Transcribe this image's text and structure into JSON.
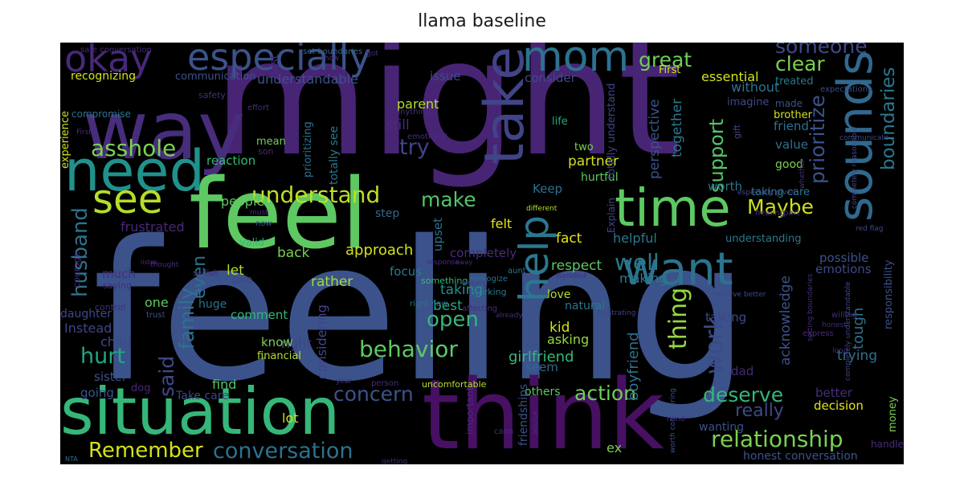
{
  "title": "llama baseline",
  "words": [
    {
      "text": "might",
      "color": "#482475"
    },
    {
      "text": "feeling",
      "color": "#3b528b"
    },
    {
      "text": "way",
      "color": "#472d7b"
    },
    {
      "text": "feel",
      "color": "#5ec962"
    },
    {
      "text": "think",
      "color": "#471063"
    },
    {
      "text": "situation",
      "color": "#35b779"
    },
    {
      "text": "need",
      "color": "#21918c"
    },
    {
      "text": "take",
      "color": "#414487"
    },
    {
      "text": "time",
      "color": "#5ec962"
    },
    {
      "text": "want",
      "color": "#2c728e"
    },
    {
      "text": "sounds",
      "color": "#31688e"
    },
    {
      "text": "help",
      "color": "#2a788e"
    },
    {
      "text": "mom",
      "color": "#2c728e"
    },
    {
      "text": "especially",
      "color": "#3b528b"
    },
    {
      "text": "okay",
      "color": "#482878"
    },
    {
      "text": "see",
      "color": "#b5de2b"
    },
    {
      "text": "asshole",
      "color": "#7ad151"
    },
    {
      "text": "understand",
      "color": "#bddf26"
    },
    {
      "text": "behavior",
      "color": "#5ec962"
    },
    {
      "text": "relationship",
      "color": "#7ad151"
    },
    {
      "text": "conversation",
      "color": "#2c728e"
    },
    {
      "text": "Remember",
      "color": "#d2e21b"
    },
    {
      "text": "concern",
      "color": "#3b528b"
    },
    {
      "text": "deserve",
      "color": "#35b779"
    },
    {
      "text": "action",
      "color": "#6ece58"
    },
    {
      "text": "make",
      "color": "#54c568"
    },
    {
      "text": "open",
      "color": "#35b779"
    },
    {
      "text": "try",
      "color": "#414487"
    },
    {
      "text": "hurt",
      "color": "#21a685"
    },
    {
      "text": "Maybe",
      "color": "#cde11d"
    },
    {
      "text": "well",
      "color": "#2a788e"
    },
    {
      "text": "thing",
      "color": "#95d840"
    },
    {
      "text": "work",
      "color": "#3e4989"
    },
    {
      "text": "great",
      "color": "#6ece58"
    },
    {
      "text": "clear",
      "color": "#7ad151"
    },
    {
      "text": "someone",
      "color": "#3e4989"
    },
    {
      "text": "support",
      "color": "#54c568"
    },
    {
      "text": "prioritize",
      "color": "#3b528b"
    },
    {
      "text": "boundaries",
      "color": "#2a788e"
    },
    {
      "text": "really",
      "color": "#3e4989"
    },
    {
      "text": "family",
      "color": "#2c728e"
    },
    {
      "text": "husband",
      "color": "#2c728e"
    },
    {
      "text": "said",
      "color": "#3e4989"
    },
    {
      "text": "even",
      "color": "#2c728e"
    },
    {
      "text": "understandable",
      "color": "#3b528b"
    },
    {
      "text": "essential",
      "color": "#d2e21b"
    },
    {
      "text": "issue",
      "color": "#3e4989"
    },
    {
      "text": "consider",
      "color": "#3e4989"
    },
    {
      "text": "recognizing",
      "color": "#d2e21b"
    },
    {
      "text": "people",
      "color": "#5ec962"
    },
    {
      "text": "frustrated",
      "color": "#482878"
    },
    {
      "text": "approach",
      "color": "#d2e21b"
    },
    {
      "text": "back",
      "color": "#7ad151"
    },
    {
      "text": "rather",
      "color": "#a0da39"
    },
    {
      "text": "let",
      "color": "#b5de2b"
    },
    {
      "text": "taking",
      "color": "#21918c"
    },
    {
      "text": "best",
      "color": "#22a884"
    },
    {
      "text": "kid",
      "color": "#d2e21b"
    },
    {
      "text": "girlfriend",
      "color": "#35b779"
    },
    {
      "text": "boyfriend",
      "color": "#2c728e"
    },
    {
      "text": "respect",
      "color": "#5ec962"
    },
    {
      "text": "fact",
      "color": "#e5e419"
    },
    {
      "text": "partner",
      "color": "#d2e21b"
    },
    {
      "text": "helpful",
      "color": "#2a788e"
    },
    {
      "text": "making",
      "color": "#2a788e"
    },
    {
      "text": "child",
      "color": "#3e4989"
    },
    {
      "text": "Instead",
      "color": "#414487"
    },
    {
      "text": "one",
      "color": "#5ec962"
    },
    {
      "text": "sister",
      "color": "#3b528b"
    },
    {
      "text": "going",
      "color": "#3b528b"
    },
    {
      "text": "Take care",
      "color": "#414487"
    },
    {
      "text": "find",
      "color": "#54c568"
    },
    {
      "text": "lot",
      "color": "#d2e21b"
    },
    {
      "text": "others",
      "color": "#5ec962"
    },
    {
      "text": "ex",
      "color": "#7ad151"
    },
    {
      "text": "honest conversation",
      "color": "#3b528b"
    },
    {
      "text": "trying",
      "color": "#2c728e"
    },
    {
      "text": "tough",
      "color": "#2c728e"
    },
    {
      "text": "acknowledge",
      "color": "#3b528b"
    },
    {
      "text": "better",
      "color": "#472d7b"
    },
    {
      "text": "decision",
      "color": "#e5e419"
    },
    {
      "text": "dad",
      "color": "#482878"
    },
    {
      "text": "talking",
      "color": "#3e4989"
    },
    {
      "text": "worth",
      "color": "#2c728e"
    },
    {
      "text": "value",
      "color": "#2c728e"
    },
    {
      "text": "friend",
      "color": "#2c728e"
    },
    {
      "text": "good",
      "color": "#7ad151"
    },
    {
      "text": "brother",
      "color": "#d2e21b"
    },
    {
      "text": "made",
      "color": "#3b528b"
    },
    {
      "text": "possible",
      "color": "#3b528b"
    },
    {
      "text": "emotions",
      "color": "#3e4989"
    },
    {
      "text": "understanding",
      "color": "#2a788e"
    },
    {
      "text": "taking care",
      "color": "#2a788e"
    },
    {
      "text": "without",
      "color": "#2c728e"
    },
    {
      "text": "First",
      "color": "#d2e21b"
    },
    {
      "text": "imagine",
      "color": "#3e4989"
    },
    {
      "text": "treated",
      "color": "#2a788e"
    },
    {
      "text": "handle",
      "color": "#472d7b"
    },
    {
      "text": "perspective",
      "color": "#3b528b"
    },
    {
      "text": "together",
      "color": "#2a788e"
    },
    {
      "text": "Keep",
      "color": "#2c728e"
    },
    {
      "text": "still",
      "color": "#472d7b"
    },
    {
      "text": "parent",
      "color": "#b5de2b"
    },
    {
      "text": "hurtful",
      "color": "#5ec962"
    },
    {
      "text": "reaction",
      "color": "#35b779"
    },
    {
      "text": "felt",
      "color": "#e5e419"
    },
    {
      "text": "completely",
      "color": "#472d7b"
    },
    {
      "text": "focus",
      "color": "#2a788e"
    },
    {
      "text": "right",
      "color": "#414487"
    },
    {
      "text": "considering",
      "color": "#414487"
    },
    {
      "text": "financial",
      "color": "#b5de2b"
    },
    {
      "text": "know",
      "color": "#7ad151"
    },
    {
      "text": "comment",
      "color": "#35b779"
    },
    {
      "text": "huge",
      "color": "#2c728e"
    },
    {
      "text": "daughter",
      "color": "#3e4989"
    },
    {
      "text": "much",
      "color": "#472d7b"
    },
    {
      "text": "life",
      "color": "#22a884"
    },
    {
      "text": "two",
      "color": "#7ad151"
    },
    {
      "text": "love",
      "color": "#b5de2b"
    },
    {
      "text": "natural",
      "color": "#2a788e"
    },
    {
      "text": "asking",
      "color": "#95d840"
    },
    {
      "text": "seem",
      "color": "#31688e"
    },
    {
      "text": "upset",
      "color": "#2c728e"
    },
    {
      "text": "step",
      "color": "#31688e"
    },
    {
      "text": "valid",
      "color": "#35b779"
    },
    {
      "text": "experience",
      "color": "#d2e21b"
    },
    {
      "text": "compromise",
      "color": "#2c728e"
    },
    {
      "text": "communication",
      "color": "#3b528b"
    },
    {
      "text": "mean",
      "color": "#6ece58"
    },
    {
      "text": "son",
      "color": "#482878"
    },
    {
      "text": "prioritizing",
      "color": "#2c728e"
    },
    {
      "text": "totally see",
      "color": "#2a788e"
    },
    {
      "text": "money",
      "color": "#7ad151"
    },
    {
      "text": "important",
      "color": "#482878"
    },
    {
      "text": "friendships",
      "color": "#3b528b"
    },
    {
      "text": "responsibility",
      "color": "#3b528b"
    },
    {
      "text": "safety",
      "color": "#472d7b"
    },
    {
      "text": "effort",
      "color": "#472d7b"
    },
    {
      "text": "emotional",
      "color": "#472d7b"
    },
    {
      "text": "anything",
      "color": "#472d7b"
    },
    {
      "text": "totally understand",
      "color": "#414487"
    },
    {
      "text": "Explain",
      "color": "#414487"
    },
    {
      "text": "something",
      "color": "#35b779"
    },
    {
      "text": "apologize",
      "color": "#2c728e"
    },
    {
      "text": "working",
      "color": "#2a788e"
    },
    {
      "text": "wedding",
      "color": "#414487"
    },
    {
      "text": "set boundaries",
      "color": "#31688e"
    },
    {
      "text": "gift",
      "color": "#414487"
    },
    {
      "text": "expectations",
      "color": "#3e4989"
    },
    {
      "text": "healing",
      "color": "#472d7b"
    },
    {
      "text": "communicate",
      "color": "#414487"
    },
    {
      "text": "completely reasonable",
      "color": "#3e4989"
    },
    {
      "text": "especially given",
      "color": "#3e4989"
    },
    {
      "text": "red flag",
      "color": "#3e4989"
    },
    {
      "text": "different",
      "color": "#b5de2b"
    },
    {
      "text": "deserve better",
      "color": "#3e4989"
    },
    {
      "text": "completely understandable",
      "color": "#3e4989"
    },
    {
      "text": "express",
      "color": "#482878"
    },
    {
      "text": "honest",
      "color": "#482878"
    },
    {
      "text": "long",
      "color": "#482878"
    },
    {
      "text": "setting boundaries",
      "color": "#472d7b"
    },
    {
      "text": "frustrating",
      "color": "#414487"
    },
    {
      "text": "aunt",
      "color": "#2a788e"
    },
    {
      "text": "care",
      "color": "#414487"
    },
    {
      "text": "saying",
      "color": "#472d7b"
    },
    {
      "text": "must",
      "color": "#472d7b"
    },
    {
      "text": "now",
      "color": "#3b528b"
    },
    {
      "text": "thought",
      "color": "#472d7b"
    },
    {
      "text": "selfish",
      "color": "#472d7b"
    },
    {
      "text": "trust",
      "color": "#3b528b"
    },
    {
      "text": "control",
      "color": "#472d7b"
    },
    {
      "text": "courage",
      "color": "#472d7b"
    },
    {
      "text": "response",
      "color": "#472d7b"
    },
    {
      "text": "right now",
      "color": "#2c728e"
    },
    {
      "text": "affecting",
      "color": "#472d7b"
    },
    {
      "text": "already",
      "color": "#472d7b"
    },
    {
      "text": "uncomfortable",
      "color": "#b5de2b"
    },
    {
      "text": "dog",
      "color": "#482878"
    },
    {
      "text": "year",
      "color": "#472d7b"
    },
    {
      "text": "person",
      "color": "#472d7b"
    },
    {
      "text": "calm",
      "color": "#472d7b"
    },
    {
      "text": "advice",
      "color": "#472d7b"
    },
    {
      "text": "getting",
      "color": "#472d7b"
    },
    {
      "text": "NTA",
      "color": "#2c728e"
    },
    {
      "text": "wanting",
      "color": "#3b528b"
    },
    {
      "text": "worth considering",
      "color": "#3b528b"
    },
    {
      "text": "past",
      "color": "#472d7b"
    },
    {
      "text": "part",
      "color": "#472d7b"
    },
    {
      "text": "willing",
      "color": "#472d7b"
    },
    {
      "text": "Firstly",
      "color": "#472d7b"
    },
    {
      "text": "whether",
      "color": "#472d7b"
    },
    {
      "text": "handled",
      "color": "#472d7b"
    },
    {
      "text": "listen",
      "color": "#472d7b"
    },
    {
      "text": "away",
      "color": "#472d7b"
    },
    {
      "text": "show",
      "color": "#472d7b"
    },
    {
      "text": "got",
      "color": "#472d7b"
    },
    {
      "text": "safe conversation",
      "color": "#472d7b"
    },
    {
      "text": "hand",
      "color": "#472d7b"
    }
  ]
}
